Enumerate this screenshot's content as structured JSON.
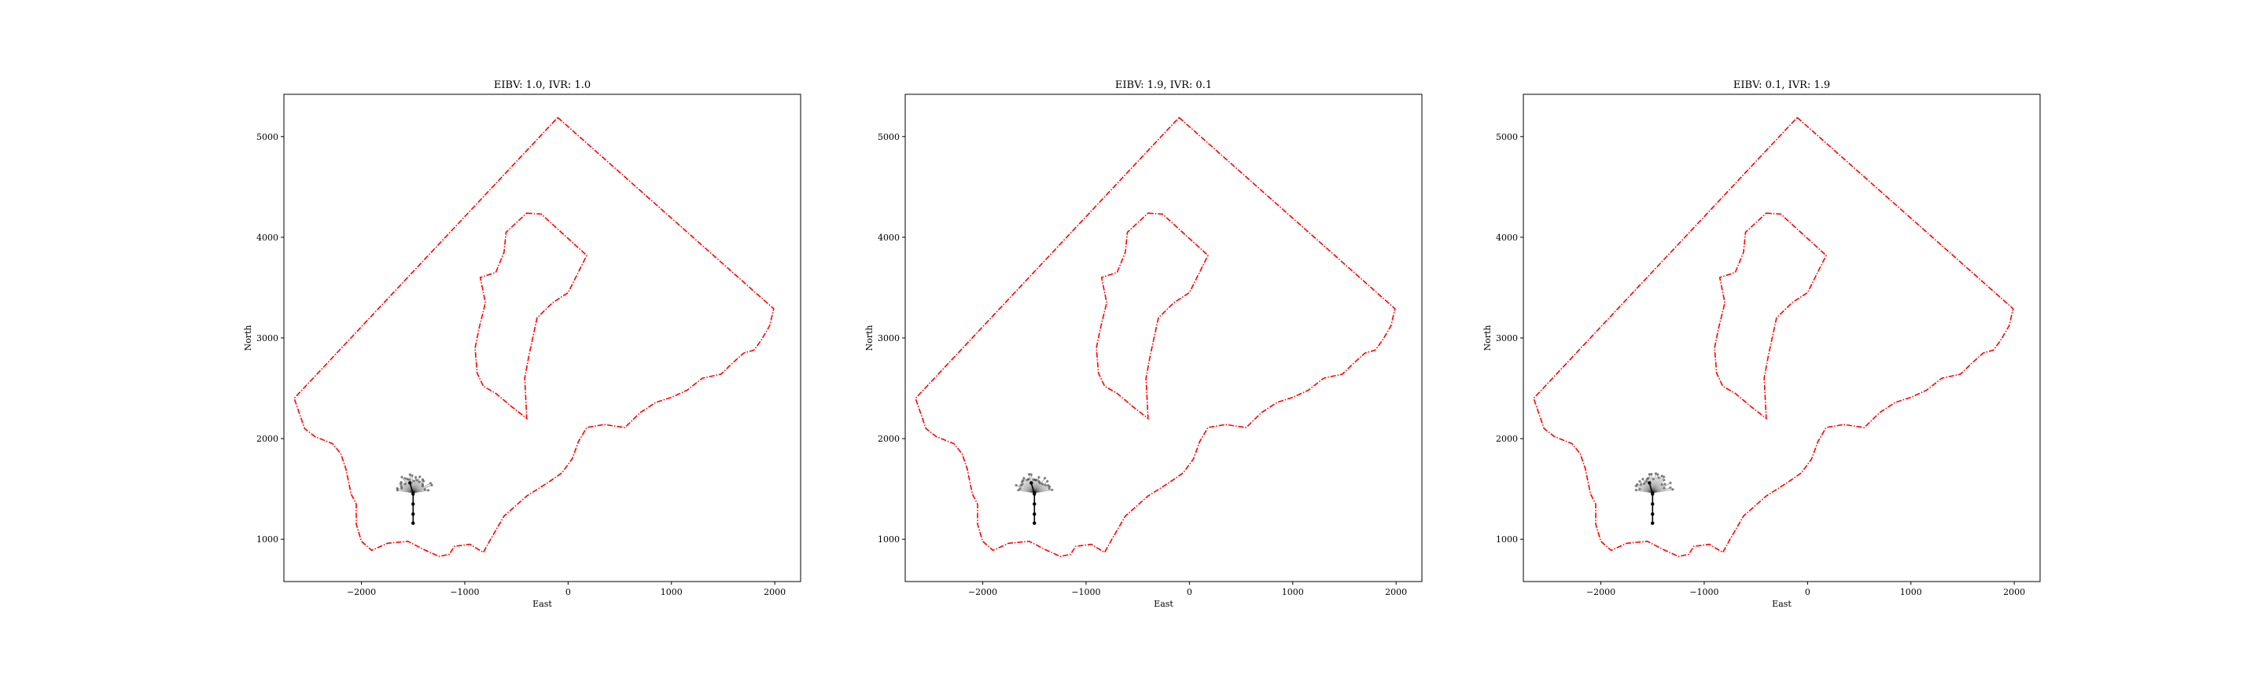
{
  "chart_data": [
    {
      "type": "line",
      "title": "EIBV: 1.0, IVR: 1.0",
      "xlabel": "East",
      "ylabel": "North",
      "xlim": [
        -2750,
        2250
      ],
      "ylim": [
        580,
        5420
      ],
      "xticks": [
        -2000,
        -1000,
        0,
        1000,
        2000
      ],
      "yticks": [
        1000,
        2000,
        3000,
        4000,
        5000
      ],
      "xticklabels": [
        "−2000",
        "−1000",
        "0",
        "1000",
        "2000"
      ],
      "yticklabels": [
        "1000",
        "2000",
        "3000",
        "4000",
        "5000"
      ]
    },
    {
      "type": "line",
      "title": "EIBV: 1.9, IVR: 0.1",
      "xlabel": "East",
      "ylabel": "North",
      "xlim": [
        -2750,
        2250
      ],
      "ylim": [
        580,
        5420
      ],
      "xticks": [
        -2000,
        -1000,
        0,
        1000,
        2000
      ],
      "yticks": [
        1000,
        2000,
        3000,
        4000,
        5000
      ],
      "xticklabels": [
        "−2000",
        "−1000",
        "0",
        "1000",
        "2000"
      ],
      "yticklabels": [
        "1000",
        "2000",
        "3000",
        "4000",
        "5000"
      ]
    },
    {
      "type": "line",
      "title": "EIBV: 0.1, IVR: 1.9",
      "xlabel": "East",
      "ylabel": "North",
      "xlim": [
        -2750,
        2250
      ],
      "ylim": [
        580,
        5420
      ],
      "xticks": [
        -2000,
        -1000,
        0,
        1000,
        2000
      ],
      "yticks": [
        1000,
        2000,
        3000,
        4000,
        5000
      ],
      "xticklabels": [
        "−2000",
        "−1000",
        "0",
        "1000",
        "2000"
      ],
      "yticklabels": [
        "1000",
        "2000",
        "3000",
        "4000",
        "5000"
      ]
    }
  ],
  "boundary": {
    "color": "#ff0000",
    "outer": [
      [
        -100,
        5190
      ],
      [
        1990,
        3290
      ],
      [
        1950,
        3120
      ],
      [
        1870,
        2980
      ],
      [
        1800,
        2880
      ],
      [
        1700,
        2850
      ],
      [
        1580,
        2740
      ],
      [
        1480,
        2640
      ],
      [
        1300,
        2600
      ],
      [
        1150,
        2480
      ],
      [
        1000,
        2410
      ],
      [
        850,
        2360
      ],
      [
        700,
        2260
      ],
      [
        550,
        2110
      ],
      [
        350,
        2140
      ],
      [
        180,
        2110
      ],
      [
        100,
        1970
      ],
      [
        40,
        1800
      ],
      [
        -60,
        1660
      ],
      [
        -200,
        1560
      ],
      [
        -400,
        1430
      ],
      [
        -620,
        1230
      ],
      [
        -750,
        1000
      ],
      [
        -820,
        870
      ],
      [
        -950,
        950
      ],
      [
        -1100,
        930
      ],
      [
        -1150,
        850
      ],
      [
        -1250,
        830
      ],
      [
        -1400,
        900
      ],
      [
        -1550,
        980
      ],
      [
        -1750,
        960
      ],
      [
        -1900,
        890
      ],
      [
        -2000,
        980
      ],
      [
        -2050,
        1150
      ],
      [
        -2050,
        1350
      ],
      [
        -2100,
        1450
      ],
      [
        -2150,
        1700
      ],
      [
        -2200,
        1850
      ],
      [
        -2280,
        1950
      ],
      [
        -2450,
        2020
      ],
      [
        -2550,
        2100
      ],
      [
        -2600,
        2250
      ],
      [
        -2650,
        2400
      ]
    ],
    "inner": [
      [
        -400,
        4240
      ],
      [
        -260,
        4230
      ],
      [
        180,
        3820
      ],
      [
        0,
        3450
      ],
      [
        -150,
        3350
      ],
      [
        -300,
        3200
      ],
      [
        -380,
        2820
      ],
      [
        -420,
        2600
      ],
      [
        -400,
        2200
      ],
      [
        -550,
        2320
      ],
      [
        -700,
        2450
      ],
      [
        -820,
        2520
      ],
      [
        -880,
        2650
      ],
      [
        -900,
        2900
      ],
      [
        -860,
        3100
      ],
      [
        -800,
        3350
      ],
      [
        -850,
        3600
      ],
      [
        -700,
        3650
      ],
      [
        -620,
        3850
      ],
      [
        -600,
        4050
      ]
    ]
  },
  "path": {
    "color": "#000000",
    "points": [
      [
        -1500,
        1160
      ],
      [
        -1500,
        1250
      ],
      [
        -1500,
        1350
      ],
      [
        -1500,
        1450
      ],
      [
        -1530,
        1560
      ]
    ]
  },
  "candidates": {
    "color": "#000000",
    "origin": [
      -1500,
      1460
    ],
    "radius": 200
  }
}
